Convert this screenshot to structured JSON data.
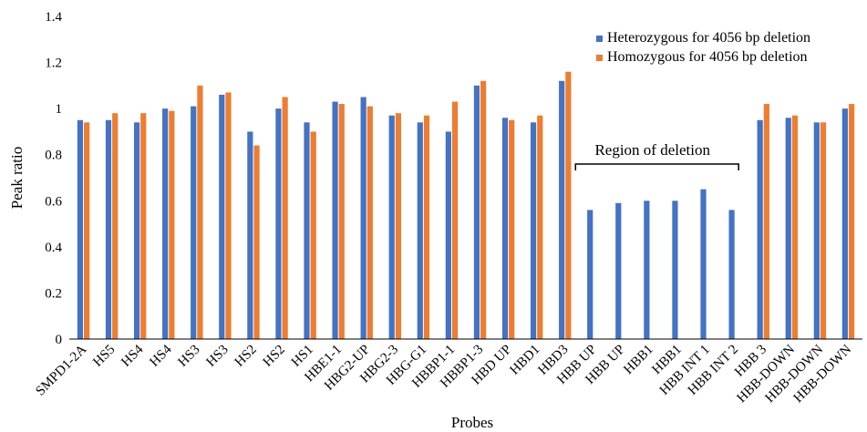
{
  "chart_data": {
    "type": "bar",
    "xlabel": "Probes",
    "ylabel": "Peak ratio",
    "ylim": [
      0,
      1.4
    ],
    "yticks": [
      "0",
      "0.2",
      "0.4",
      "0.6",
      "0.8",
      "1",
      "1.2",
      "1.4"
    ],
    "grid": false,
    "legend_position": "top-right",
    "categories": [
      "SMPD1-2A",
      "HS5",
      "HS4",
      "HS4",
      "HS3",
      "HS3",
      "HS2",
      "HS2",
      "HS1",
      "HBE1-1",
      "HBG2-UP",
      "HBG2-3",
      "HBG-G1",
      "HBBP1-1",
      "HBBP1-3",
      "HBD UP",
      "HBD1",
      "HBD3",
      "HBB UP",
      "HBB UP",
      "HBB1",
      "HBB1",
      "HBB INT 1",
      "HBB INT 2",
      "HBB 3",
      "HBB-DOWN",
      "HBB-DOWN",
      "HBB-DOWN"
    ],
    "series": [
      {
        "name": "Heterozygous for 4056 bp deletion",
        "color": "#4472c4",
        "values": [
          0.95,
          0.95,
          0.94,
          1.0,
          1.01,
          1.06,
          0.9,
          1.0,
          0.94,
          1.03,
          1.05,
          0.97,
          0.94,
          0.9,
          1.1,
          0.96,
          0.94,
          1.12,
          0.56,
          0.59,
          0.6,
          0.6,
          0.65,
          0.56,
          0.95,
          0.96,
          0.94,
          1.0
        ]
      },
      {
        "name": "Homozygous for 4056 bp deletion",
        "color": "#ed7d31",
        "values": [
          0.94,
          0.98,
          0.98,
          0.99,
          1.1,
          1.07,
          0.84,
          1.05,
          0.9,
          1.02,
          1.01,
          0.98,
          0.97,
          1.03,
          1.12,
          0.95,
          0.97,
          1.16,
          null,
          null,
          null,
          null,
          null,
          null,
          1.02,
          0.97,
          0.94,
          1.02
        ]
      }
    ],
    "annotation": {
      "text": "Region of deletion",
      "from_category": 18,
      "to_category": 23
    }
  }
}
